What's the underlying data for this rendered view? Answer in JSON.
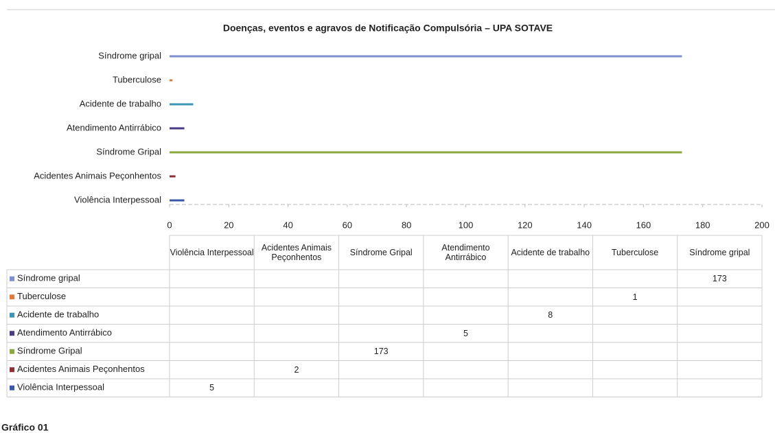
{
  "chart_data": {
    "type": "bar",
    "orientation": "horizontal",
    "title": "Doenças, eventos e agravos de Notificação Compulsória – UPA SOTAVE",
    "categories": [
      "Violência Interpessoal",
      "Acidentes Animais Peçonhentos",
      "Síndrome Gripal",
      "Atendimento Antirrábico",
      "Acidente de trabalho",
      "Tuberculose",
      "Síndrome gripal"
    ],
    "series": [
      {
        "name": "Síndrome gripal",
        "color": "#7f8fd0",
        "values": [
          null,
          null,
          null,
          null,
          null,
          null,
          173
        ]
      },
      {
        "name": "Tuberculose",
        "color": "#e07a3c",
        "values": [
          null,
          null,
          null,
          null,
          null,
          1,
          null
        ]
      },
      {
        "name": "Acidente de trabalho",
        "color": "#3f95b8",
        "values": [
          null,
          null,
          null,
          null,
          8,
          null,
          null
        ]
      },
      {
        "name": "Atendimento Antirrábico",
        "color": "#4a3a86",
        "values": [
          null,
          null,
          null,
          5,
          null,
          null,
          null
        ]
      },
      {
        "name": "Síndrome Gripal",
        "color": "#8aa83c",
        "values": [
          null,
          null,
          173,
          null,
          null,
          null,
          null
        ]
      },
      {
        "name": "Acidentes Animais Peçonhentos",
        "color": "#8e2f35",
        "values": [
          null,
          2,
          null,
          null,
          null,
          null,
          null
        ]
      },
      {
        "name": "Violência Interpessoal",
        "color": "#3a5aa8",
        "values": [
          5,
          null,
          null,
          null,
          null,
          null,
          null
        ]
      }
    ],
    "xlim": [
      0,
      200
    ],
    "xticks": [
      0,
      20,
      40,
      60,
      80,
      100,
      120,
      140,
      160,
      180,
      200
    ],
    "caption": "Gráfico 01"
  }
}
